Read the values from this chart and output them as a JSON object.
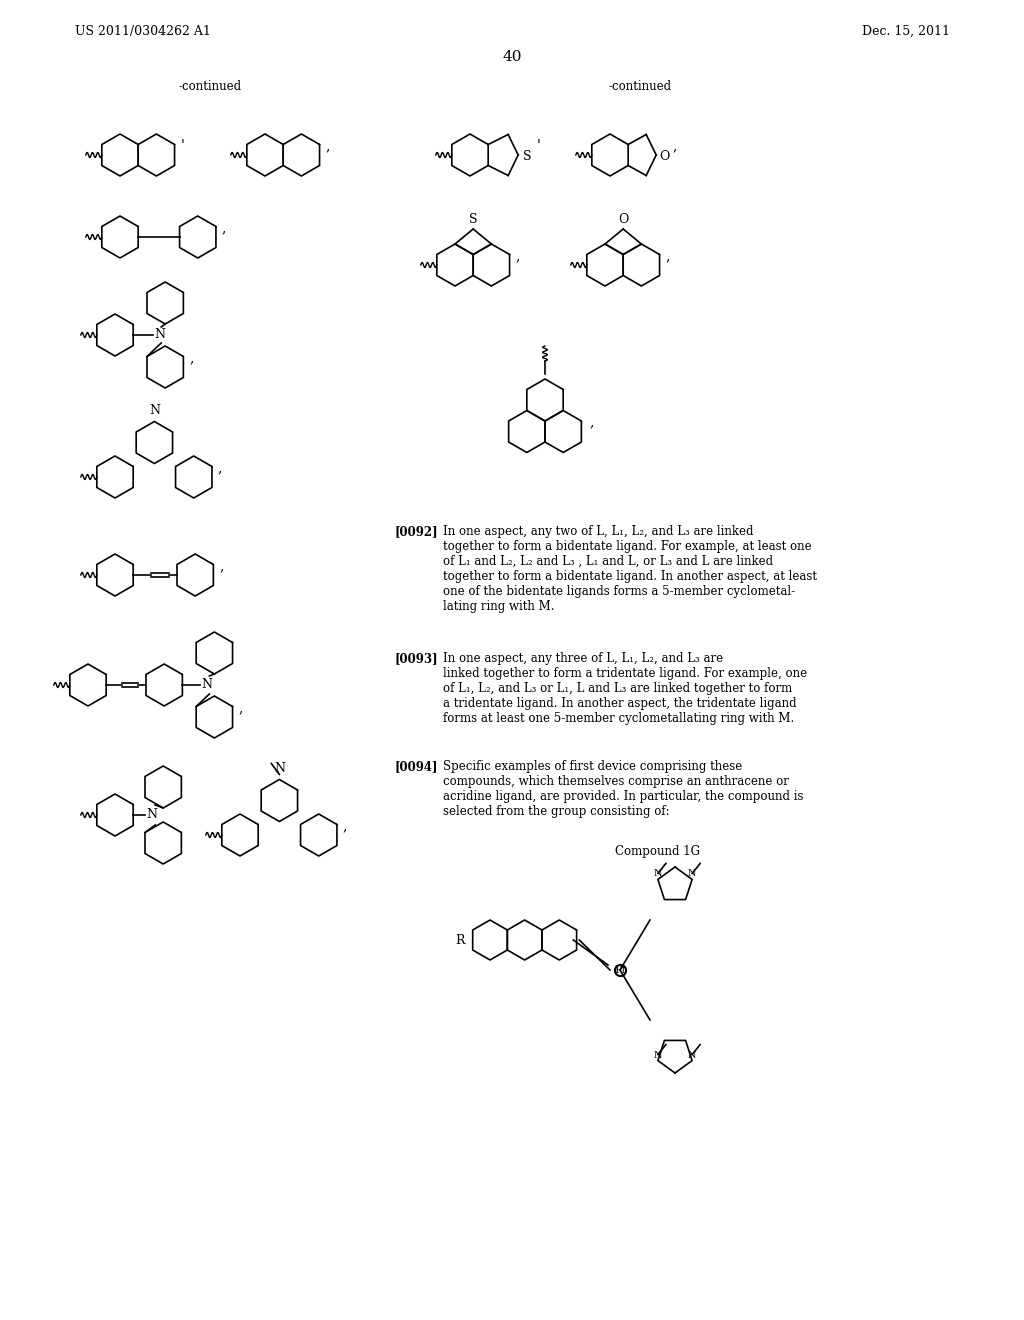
{
  "page_header_left": "US 2011/0304262 A1",
  "page_header_right": "Dec. 15, 2011",
  "page_number": "40",
  "continued_left": "-continued",
  "continued_right": "-continued",
  "paragraph_0092": "[0092]  In one aspect, any two of L, L₁, L₂, and L₃ are linked together to form a bidentate ligand. For example, at least one of L₁ and L₂, L₂ and L₃ , L₁ and L, or L₃ and L are linked together to form a bidentate ligand. In another aspect, at least one of the bidentate ligands forms a 5-member cyclometallating ring with M.",
  "paragraph_0093": "[0093]  In one aspect, any three of L, L₁, L₂, and L₃ are linked together to form a tridentate ligand. For example, one of L₁, L₂, and L₃ or L₁, L and L₃ are linked together to form a tridentate ligand. In another aspect, the tridentate ligand forms at least one 5-member cyclometallating ring with M.",
  "paragraph_0094": "[0094]  Specific examples of first device comprising these compounds, which themselves comprise an anthracene or acridine ligand, are provided. In particular, the compound is selected from the group consisting of:",
  "compound_label": "Compound 1G",
  "bg_color": "#ffffff",
  "text_color": "#000000",
  "font_size_body": 9,
  "font_size_header": 9,
  "font_size_page_num": 11
}
